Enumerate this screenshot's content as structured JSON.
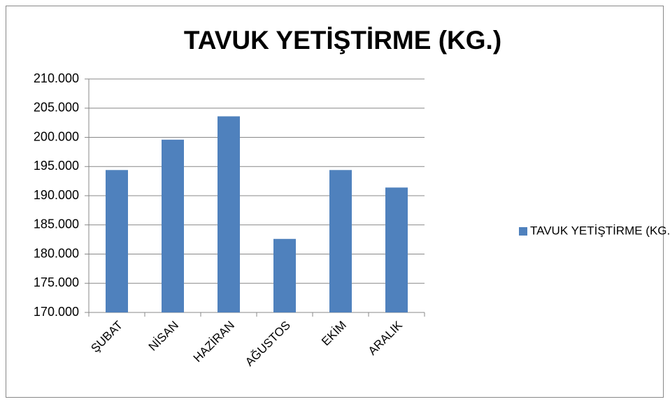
{
  "chart_data": {
    "type": "bar",
    "title": "TAVUK YETİŞTİRME (KG.)",
    "categories": [
      "ŞUBAT",
      "NİSAN",
      "HAZİRAN",
      "AĞUSTOS",
      "EKİM",
      "ARALIK"
    ],
    "series": [
      {
        "name": "TAVUK YETİŞTİRME (KG.)",
        "color": "#4f81bd",
        "values": [
          194400,
          199600,
          203600,
          182600,
          194400,
          191400
        ]
      }
    ],
    "ylim": [
      170000,
      210000
    ],
    "yticks": [
      {
        "value": 170000,
        "label": "170.000"
      },
      {
        "value": 175000,
        "label": "175.000"
      },
      {
        "value": 180000,
        "label": "180.000"
      },
      {
        "value": 185000,
        "label": "185.000"
      },
      {
        "value": 190000,
        "label": "190.000"
      },
      {
        "value": 195000,
        "label": "195.000"
      },
      {
        "value": 200000,
        "label": "200.000"
      },
      {
        "value": 205000,
        "label": "205.000"
      },
      {
        "value": 210000,
        "label": "210.000"
      }
    ],
    "grid": true,
    "legend": "right"
  }
}
